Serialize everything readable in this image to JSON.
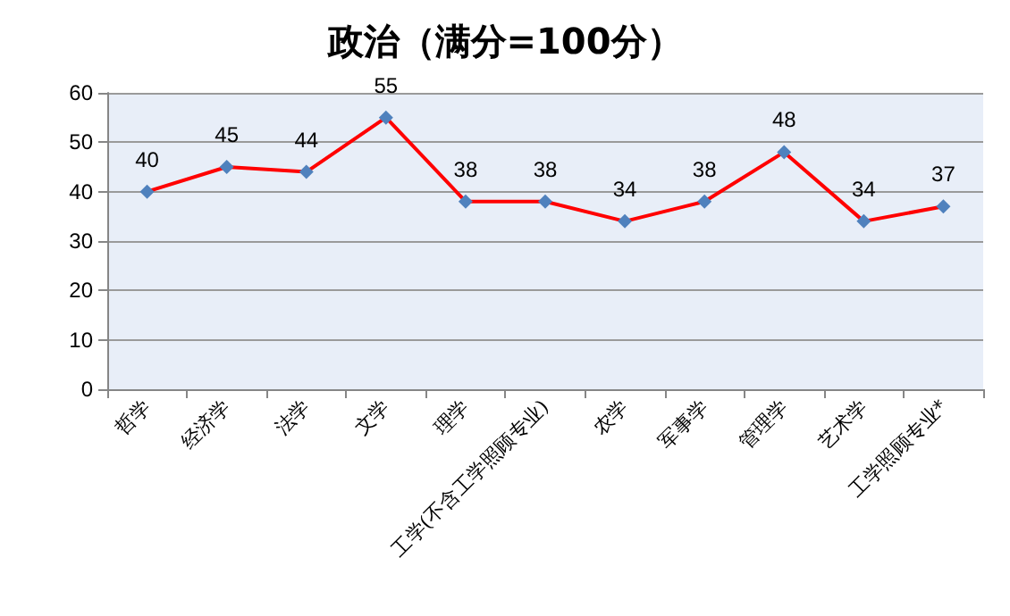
{
  "chart_data": {
    "type": "line",
    "title": "政治（满分=100分）",
    "categories": [
      "哲学",
      "经济学",
      "法学",
      "文学",
      "理学",
      "工学(不含工学照顾专业)",
      "农学",
      "军事学",
      "管理学",
      "艺术学",
      "工学照顾专业*"
    ],
    "series": [
      {
        "color": "#ff0000",
        "colors": [
          "#4f81bd",
          "#4f81bd",
          "#4f81bd",
          "#4f81bd",
          "#4f81bd",
          "#4f81bd",
          "#4f81bd",
          "#4f81bd",
          "#4f81bd",
          "#4f81bd",
          "#4f81bd"
        ],
        "values": [
          40,
          45,
          44,
          55,
          38,
          38,
          34,
          38,
          48,
          34,
          37
        ]
      }
    ],
    "marker": "diamond",
    "data_labels": true,
    "ylim": [
      0,
      60
    ],
    "yticks": [
      0,
      10,
      20,
      30,
      40,
      50,
      60
    ],
    "grid": "y"
  }
}
